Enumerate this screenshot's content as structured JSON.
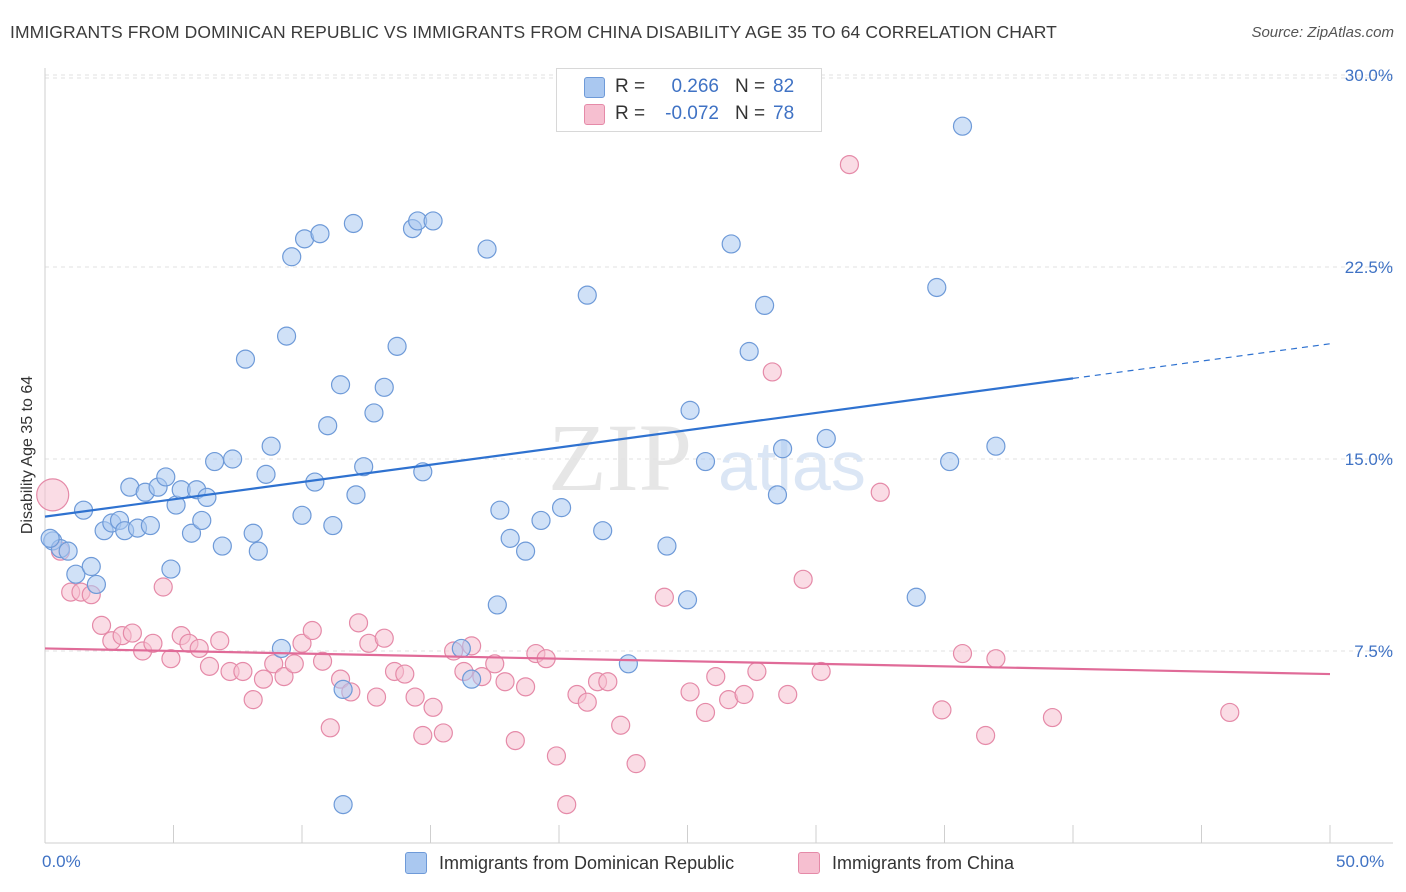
{
  "title": "IMMIGRANTS FROM DOMINICAN REPUBLIC VS IMMIGRANTS FROM CHINA DISABILITY AGE 35 TO 64 CORRELATION CHART",
  "source": "Source: ZipAtlas.com",
  "watermark": {
    "zip": "ZIP",
    "atlas": "atlas"
  },
  "colors": {
    "blue_fill": "#aac8f0",
    "blue_stroke": "#6e9ad8",
    "blue_line": "#2f72d0",
    "pink_fill": "#f6bfd0",
    "pink_stroke": "#e58aa8",
    "pink_line": "#e06b98",
    "tick_text": "#3f72c4",
    "grid": "#e2e2e2"
  },
  "stats": {
    "r_label": "R =",
    "n_label": "N =",
    "blue": {
      "r": "0.266",
      "n": "82"
    },
    "pink": {
      "r": "-0.072",
      "n": "78"
    }
  },
  "chart_data": {
    "type": "scatter",
    "title": "IMMIGRANTS FROM DOMINICAN REPUBLIC VS IMMIGRANTS FROM CHINA DISABILITY AGE 35 TO 64 CORRELATION CHART",
    "xlabel": "",
    "ylabel": "Disability Age 35 to 64",
    "xlim": [
      0,
      50
    ],
    "ylim": [
      0,
      30.5
    ],
    "x_tick_labels": [
      "0.0%",
      "50.0%"
    ],
    "y_ticks": [
      7.5,
      15.0,
      22.5,
      30.0
    ],
    "y_tick_labels": [
      "7.5%",
      "15.0%",
      "22.5%",
      "30.0%"
    ],
    "grid": "horizontal dashed",
    "legend_position": "bottom-center",
    "series": [
      {
        "name": "Immigrants from Dominican Republic",
        "color": "#aac8f0",
        "trend": {
          "x": [
            0,
            40,
            50
          ],
          "y": [
            12.75,
            18.15,
            19.5
          ],
          "dashed_from_x": 40
        },
        "points": [
          [
            0.3,
            11.8
          ],
          [
            0.6,
            11.5
          ],
          [
            0.9,
            11.4
          ],
          [
            1.2,
            10.5
          ],
          [
            1.5,
            13.0
          ],
          [
            1.8,
            10.8
          ],
          [
            2.0,
            10.1
          ],
          [
            2.3,
            12.2
          ],
          [
            2.6,
            12.5
          ],
          [
            2.9,
            12.6
          ],
          [
            3.1,
            12.2
          ],
          [
            3.3,
            13.9
          ],
          [
            3.6,
            12.3
          ],
          [
            3.9,
            13.7
          ],
          [
            4.1,
            12.4
          ],
          [
            4.4,
            13.9
          ],
          [
            4.7,
            14.3
          ],
          [
            4.9,
            10.7
          ],
          [
            5.1,
            13.2
          ],
          [
            5.3,
            13.8
          ],
          [
            5.7,
            12.1
          ],
          [
            5.9,
            13.8
          ],
          [
            6.1,
            12.6
          ],
          [
            6.3,
            13.5
          ],
          [
            6.6,
            14.9
          ],
          [
            6.9,
            11.6
          ],
          [
            7.3,
            15.0
          ],
          [
            7.8,
            18.9
          ],
          [
            8.1,
            12.1
          ],
          [
            8.3,
            11.4
          ],
          [
            8.6,
            14.4
          ],
          [
            8.8,
            15.5
          ],
          [
            9.2,
            7.6
          ],
          [
            9.4,
            19.8
          ],
          [
            9.6,
            22.9
          ],
          [
            10.0,
            12.8
          ],
          [
            10.1,
            23.6
          ],
          [
            10.5,
            14.1
          ],
          [
            10.7,
            23.8
          ],
          [
            11.0,
            16.3
          ],
          [
            11.2,
            12.4
          ],
          [
            11.5,
            17.9
          ],
          [
            11.6,
            6.0
          ],
          [
            11.6,
            1.5
          ],
          [
            12.0,
            24.2
          ],
          [
            12.1,
            13.6
          ],
          [
            12.4,
            14.7
          ],
          [
            12.8,
            16.8
          ],
          [
            13.2,
            17.8
          ],
          [
            13.7,
            19.4
          ],
          [
            14.3,
            24.0
          ],
          [
            14.5,
            24.3
          ],
          [
            14.7,
            14.5
          ],
          [
            15.1,
            24.3
          ],
          [
            16.2,
            7.6
          ],
          [
            16.6,
            6.4
          ],
          [
            17.2,
            23.2
          ],
          [
            17.6,
            9.3
          ],
          [
            17.7,
            13.0
          ],
          [
            18.1,
            11.9
          ],
          [
            18.7,
            11.4
          ],
          [
            19.3,
            12.6
          ],
          [
            20.1,
            13.1
          ],
          [
            21.1,
            21.4
          ],
          [
            21.7,
            12.2
          ],
          [
            22.7,
            7.0
          ],
          [
            24.2,
            11.6
          ],
          [
            25.0,
            9.5
          ],
          [
            25.1,
            16.9
          ],
          [
            25.7,
            14.9
          ],
          [
            26.7,
            23.4
          ],
          [
            27.4,
            19.2
          ],
          [
            28.0,
            21.0
          ],
          [
            28.5,
            13.6
          ],
          [
            28.7,
            15.4
          ],
          [
            30.4,
            15.8
          ],
          [
            33.9,
            9.6
          ],
          [
            34.7,
            21.7
          ],
          [
            35.2,
            14.9
          ],
          [
            35.7,
            28.0
          ],
          [
            37.0,
            15.5
          ],
          [
            0.2,
            11.9
          ]
        ]
      },
      {
        "name": "Immigrants from China",
        "color": "#f6bfd0",
        "trend": {
          "x": [
            0,
            50
          ],
          "y": [
            7.6,
            6.6
          ]
        },
        "points": [
          [
            0.3,
            13.6
          ],
          [
            0.6,
            11.4
          ],
          [
            1.0,
            9.8
          ],
          [
            1.4,
            9.8
          ],
          [
            1.8,
            9.7
          ],
          [
            2.2,
            8.5
          ],
          [
            2.6,
            7.9
          ],
          [
            3.0,
            8.1
          ],
          [
            3.4,
            8.2
          ],
          [
            3.8,
            7.5
          ],
          [
            4.2,
            7.8
          ],
          [
            4.6,
            10.0
          ],
          [
            4.9,
            7.2
          ],
          [
            5.3,
            8.1
          ],
          [
            5.6,
            7.8
          ],
          [
            6.0,
            7.6
          ],
          [
            6.4,
            6.9
          ],
          [
            6.8,
            7.9
          ],
          [
            7.2,
            6.7
          ],
          [
            7.7,
            6.7
          ],
          [
            8.1,
            5.6
          ],
          [
            8.5,
            6.4
          ],
          [
            8.9,
            7.0
          ],
          [
            9.3,
            6.5
          ],
          [
            9.7,
            7.0
          ],
          [
            10.0,
            7.8
          ],
          [
            10.4,
            8.3
          ],
          [
            10.8,
            7.1
          ],
          [
            11.1,
            4.5
          ],
          [
            11.5,
            6.4
          ],
          [
            11.9,
            5.9
          ],
          [
            12.2,
            8.6
          ],
          [
            12.6,
            7.8
          ],
          [
            12.9,
            5.7
          ],
          [
            13.2,
            8.0
          ],
          [
            13.6,
            6.7
          ],
          [
            14.0,
            6.6
          ],
          [
            14.4,
            5.7
          ],
          [
            14.7,
            4.2
          ],
          [
            15.1,
            5.3
          ],
          [
            15.5,
            4.3
          ],
          [
            15.9,
            7.5
          ],
          [
            16.3,
            6.7
          ],
          [
            16.6,
            7.7
          ],
          [
            17.0,
            6.5
          ],
          [
            17.5,
            7.0
          ],
          [
            17.9,
            6.3
          ],
          [
            18.3,
            4.0
          ],
          [
            18.7,
            6.1
          ],
          [
            19.1,
            7.4
          ],
          [
            19.5,
            7.2
          ],
          [
            19.9,
            3.4
          ],
          [
            20.3,
            1.5
          ],
          [
            20.7,
            5.8
          ],
          [
            21.1,
            5.5
          ],
          [
            21.5,
            6.3
          ],
          [
            21.9,
            6.3
          ],
          [
            22.4,
            4.6
          ],
          [
            23.0,
            3.1
          ],
          [
            24.1,
            9.6
          ],
          [
            25.1,
            5.9
          ],
          [
            25.7,
            5.1
          ],
          [
            26.1,
            6.5
          ],
          [
            26.6,
            5.6
          ],
          [
            27.2,
            5.8
          ],
          [
            27.7,
            6.7
          ],
          [
            28.3,
            18.4
          ],
          [
            29.5,
            10.3
          ],
          [
            30.2,
            6.7
          ],
          [
            31.3,
            26.5
          ],
          [
            32.5,
            13.7
          ],
          [
            34.9,
            5.2
          ],
          [
            35.7,
            7.4
          ],
          [
            36.6,
            4.2
          ],
          [
            37.0,
            7.2
          ],
          [
            39.2,
            4.9
          ],
          [
            46.1,
            5.1
          ],
          [
            28.9,
            5.8
          ]
        ]
      }
    ]
  }
}
